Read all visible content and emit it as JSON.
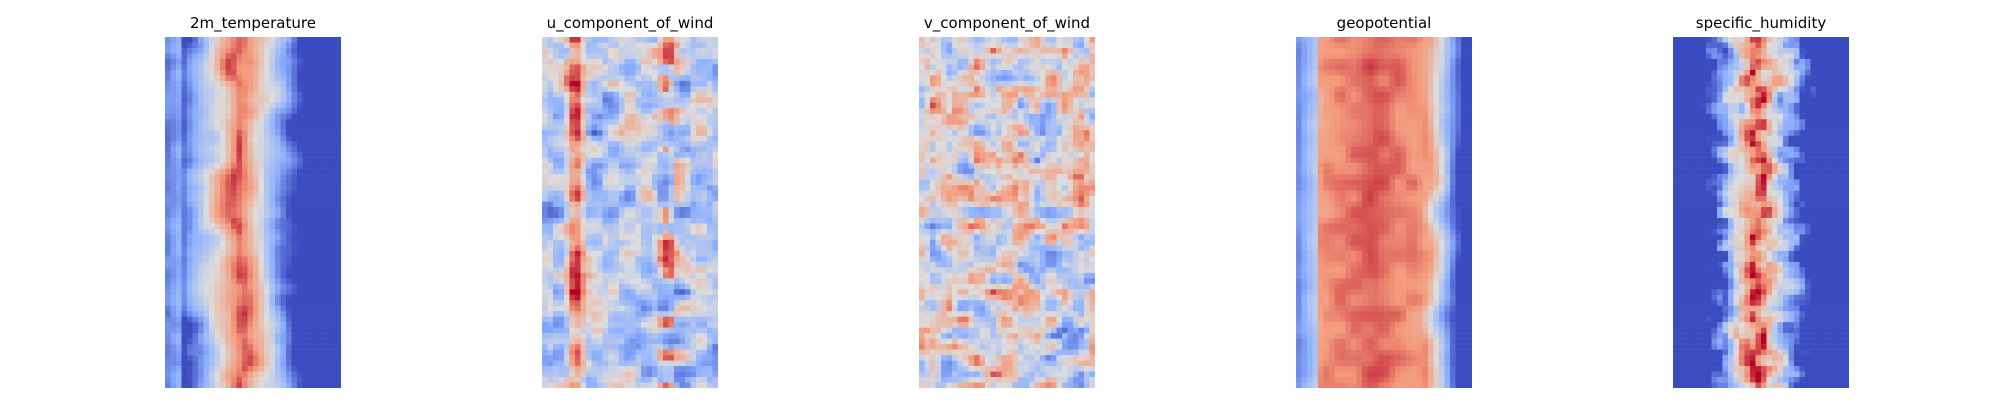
{
  "chart_data": [
    {
      "type": "heatmap",
      "title": "2m_temperature",
      "colormap": "coolwarm",
      "axis": "off",
      "pattern": "warm-band"
    },
    {
      "type": "heatmap",
      "title": "u_component_of_wind",
      "colormap": "coolwarm",
      "axis": "off",
      "pattern": "wind-u"
    },
    {
      "type": "heatmap",
      "title": "v_component_of_wind",
      "colormap": "coolwarm",
      "axis": "off",
      "pattern": "wind-v"
    },
    {
      "type": "heatmap",
      "title": "geopotential",
      "colormap": "coolwarm",
      "axis": "off",
      "pattern": "geo-band"
    },
    {
      "type": "heatmap",
      "title": "specific_humidity",
      "colormap": "coolwarm",
      "axis": "off",
      "pattern": "humidity"
    }
  ],
  "colors": {
    "cold": "#3b4cc0",
    "neutral": "#dddddd",
    "warm": "#b40426"
  }
}
